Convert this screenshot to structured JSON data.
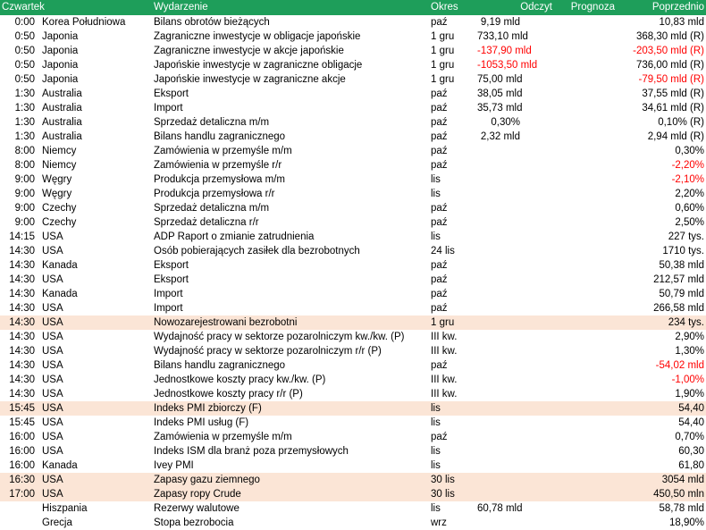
{
  "header": {
    "day": "Czwartek",
    "event": "Wydarzenie",
    "period": "Okres",
    "actual": "Odczyt",
    "forecast": "Prognoza",
    "previous": "Poprzednio"
  },
  "colors": {
    "header_bg": "#1e9e5a",
    "highlight_bg": "#fbe5d6",
    "negative_text": "#ff0000"
  },
  "rows": [
    {
      "time": "0:00",
      "country": "Korea Południowa",
      "event": "Bilans obrotów bieżących",
      "period": "paź",
      "actual": "9,19 mld",
      "forecast": "",
      "previous": "10,83 mld"
    },
    {
      "time": "0:50",
      "country": "Japonia",
      "event": "Zagraniczne inwestycje w obligacje japońskie",
      "period": "1 gru",
      "actual": "733,10 mld",
      "forecast": "",
      "previous": "368,30 mld (R)"
    },
    {
      "time": "0:50",
      "country": "Japonia",
      "event": "Zagraniczne inwestycje w akcje japońskie",
      "period": "1 gru",
      "actual": "-137,90 mld",
      "forecast": "",
      "previous": "-203,50 mld (R)",
      "actual_neg": true,
      "previous_neg": true
    },
    {
      "time": "0:50",
      "country": "Japonia",
      "event": "Japońskie inwestycje w zagraniczne obligacje",
      "period": "1 gru",
      "actual": "-1053,50 mld",
      "forecast": "",
      "previous": "736,00 mld (R)",
      "actual_neg": true
    },
    {
      "time": "0:50",
      "country": "Japonia",
      "event": "Japońskie inwestycje w zagraniczne akcje",
      "period": "1 gru",
      "actual": "75,00 mld",
      "forecast": "",
      "previous": "-79,50 mld (R)",
      "previous_neg": true
    },
    {
      "time": "1:30",
      "country": "Australia",
      "event": "Eksport",
      "period": "paź",
      "actual": "38,05 mld",
      "forecast": "",
      "previous": "37,55 mld (R)"
    },
    {
      "time": "1:30",
      "country": "Australia",
      "event": "Import",
      "period": "paź",
      "actual": "35,73 mld",
      "forecast": "",
      "previous": "34,61 mld (R)"
    },
    {
      "time": "1:30",
      "country": "Australia",
      "event": "Sprzedaż detaliczna m/m",
      "period": "paź",
      "actual": "0,30%",
      "forecast": "",
      "previous": "0,10% (R)"
    },
    {
      "time": "1:30",
      "country": "Australia",
      "event": "Bilans handlu zagranicznego",
      "period": "paź",
      "actual": "2,32 mld",
      "forecast": "",
      "previous": "2,94 mld (R)"
    },
    {
      "time": "8:00",
      "country": "Niemcy",
      "event": "Zamówienia w przemyśle m/m",
      "period": "paź",
      "actual": "",
      "forecast": "",
      "previous": "0,30%"
    },
    {
      "time": "8:00",
      "country": "Niemcy",
      "event": "Zamówienia w przemyśle r/r",
      "period": "paź",
      "actual": "",
      "forecast": "",
      "previous": "-2,20%",
      "previous_neg": true
    },
    {
      "time": "9:00",
      "country": "Węgry",
      "event": "Produkcja przemysłowa m/m",
      "period": "lis",
      "actual": "",
      "forecast": "",
      "previous": "-2,10%",
      "previous_neg": true
    },
    {
      "time": "9:00",
      "country": "Węgry",
      "event": "Produkcja przemysłowa r/r",
      "period": "lis",
      "actual": "",
      "forecast": "",
      "previous": "2,20%"
    },
    {
      "time": "9:00",
      "country": "Czechy",
      "event": "Sprzedaż detaliczna m/m",
      "period": "paź",
      "actual": "",
      "forecast": "",
      "previous": "0,60%"
    },
    {
      "time": "9:00",
      "country": "Czechy",
      "event": "Sprzedaż detaliczna r/r",
      "period": "paź",
      "actual": "",
      "forecast": "",
      "previous": "2,50%"
    },
    {
      "time": "14:15",
      "country": "USA",
      "event": "ADP Raport o zmianie zatrudnienia",
      "period": "lis",
      "actual": "",
      "forecast": "",
      "previous": "227 tys."
    },
    {
      "time": "14:30",
      "country": "USA",
      "event": "Osób pobierających zasiłek dla bezrobotnych",
      "period": "24 lis",
      "actual": "",
      "forecast": "",
      "previous": "1710 tys."
    },
    {
      "time": "14:30",
      "country": "Kanada",
      "event": "Eksport",
      "period": "paź",
      "actual": "",
      "forecast": "",
      "previous": "50,38 mld"
    },
    {
      "time": "14:30",
      "country": "USA",
      "event": "Eksport",
      "period": "paź",
      "actual": "",
      "forecast": "",
      "previous": "212,57 mld"
    },
    {
      "time": "14:30",
      "country": "Kanada",
      "event": "Import",
      "period": "paź",
      "actual": "",
      "forecast": "",
      "previous": "50,79 mld"
    },
    {
      "time": "14:30",
      "country": "USA",
      "event": "Import",
      "period": "paź",
      "actual": "",
      "forecast": "",
      "previous": "266,58 mld"
    },
    {
      "time": "14:30",
      "country": "USA",
      "event": "Nowozarejestrowani bezrobotni",
      "period": "1 gru",
      "actual": "",
      "forecast": "",
      "previous": "234 tys.",
      "highlight": true
    },
    {
      "time": "14:30",
      "country": "USA",
      "event": "Wydajność pracy w sektorze pozarolniczym kw./kw. (P)",
      "period": "III kw.",
      "actual": "",
      "forecast": "",
      "previous": "2,90%"
    },
    {
      "time": "14:30",
      "country": "USA",
      "event": "Wydajność pracy w sektorze pozarolniczym r/r (P)",
      "period": "III kw.",
      "actual": "",
      "forecast": "",
      "previous": "1,30%"
    },
    {
      "time": "14:30",
      "country": "USA",
      "event": "Bilans handlu zagranicznego",
      "period": "paź",
      "actual": "",
      "forecast": "",
      "previous": "-54,02 mld",
      "previous_neg": true
    },
    {
      "time": "14:30",
      "country": "USA",
      "event": "Jednostkowe koszty pracy kw./kw. (P)",
      "period": "III kw.",
      "actual": "",
      "forecast": "",
      "previous": "-1,00%",
      "previous_neg": true
    },
    {
      "time": "14:30",
      "country": "USA",
      "event": "Jednostkowe koszty pracy r/r (P)",
      "period": "III kw.",
      "actual": "",
      "forecast": "",
      "previous": "1,90%"
    },
    {
      "time": "15:45",
      "country": "USA",
      "event": "Indeks PMI zbiorczy (F)",
      "period": "lis",
      "actual": "",
      "forecast": "",
      "previous": "54,40",
      "highlight": true
    },
    {
      "time": "15:45",
      "country": "USA",
      "event": "Indeks PMI usług (F)",
      "period": "lis",
      "actual": "",
      "forecast": "",
      "previous": "54,40"
    },
    {
      "time": "16:00",
      "country": "USA",
      "event": "Zamówienia w przemyśle m/m",
      "period": "paź",
      "actual": "",
      "forecast": "",
      "previous": "0,70%"
    },
    {
      "time": "16:00",
      "country": "USA",
      "event": "Indeks ISM dla branż poza przemysłowych",
      "period": "lis",
      "actual": "",
      "forecast": "",
      "previous": "60,30"
    },
    {
      "time": "16:00",
      "country": "Kanada",
      "event": "Ivey PMI",
      "period": "lis",
      "actual": "",
      "forecast": "",
      "previous": "61,80"
    },
    {
      "time": "16:30",
      "country": "USA",
      "event": "Zapasy gazu ziemnego",
      "period": "30 lis",
      "actual": "",
      "forecast": "",
      "previous": "3054 mld",
      "highlight": true
    },
    {
      "time": "17:00",
      "country": "USA",
      "event": "Zapasy ropy Crude",
      "period": "30 lis",
      "actual": "",
      "forecast": "",
      "previous": "450,50 mln",
      "highlight": true
    },
    {
      "time": "",
      "country": "Hiszpania",
      "event": "Rezerwy walutowe",
      "period": "lis",
      "actual": "60,78 mld",
      "forecast": "",
      "previous": "58,78 mld"
    },
    {
      "time": "",
      "country": "Grecja",
      "event": "Stopa bezrobocia",
      "period": "wrz",
      "actual": "",
      "forecast": "",
      "previous": "18,90%"
    }
  ]
}
